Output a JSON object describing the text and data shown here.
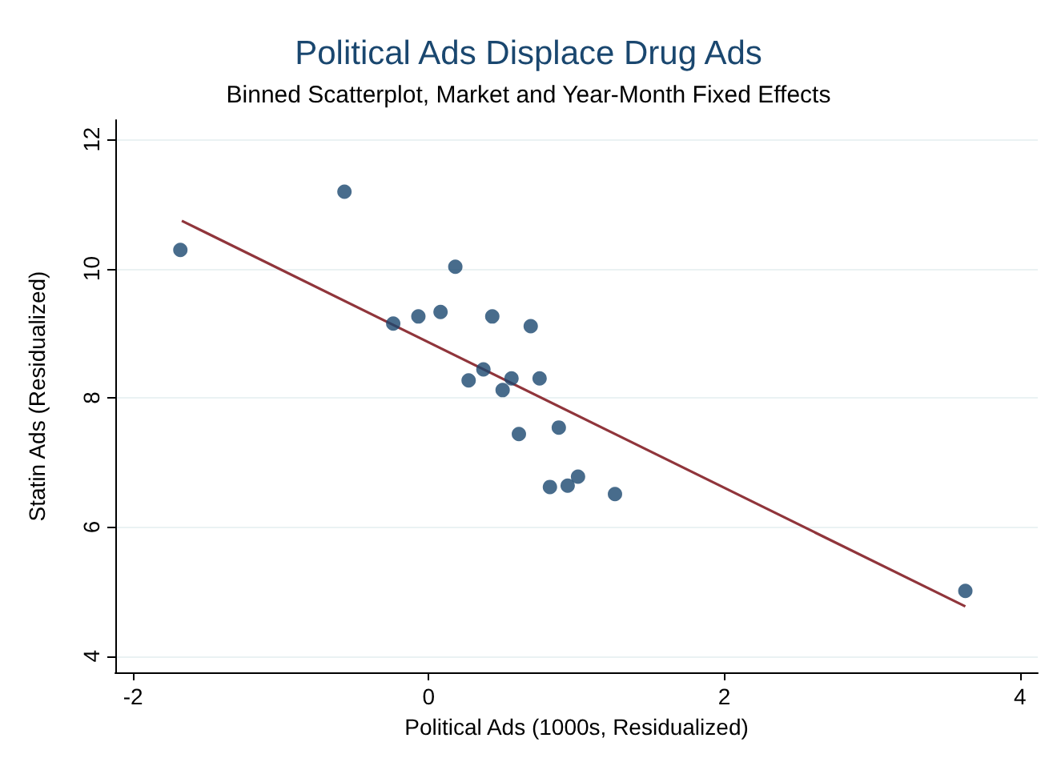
{
  "chart_data": {
    "type": "scatter",
    "title": "Political Ads Displace Drug Ads",
    "subtitle": "Binned Scatterplot, Market and Year-Month Fixed Effects",
    "xlabel": "Political Ads (1000s, Residualized)",
    "ylabel": "Statin Ads (Residualized)",
    "xlim": [
      -2.12,
      4.12
    ],
    "xticks": [
      -2,
      0,
      2,
      4
    ],
    "ylim": [
      3.75,
      12.3
    ],
    "yticks": [
      4,
      6,
      8,
      10,
      12
    ],
    "grid": "y",
    "marker": "circle",
    "series": [
      {
        "color": "#1a476f",
        "x": [
          -1.68,
          -0.57,
          -0.24,
          -0.07,
          0.08,
          0.18,
          0.27,
          0.37,
          0.43,
          0.5,
          0.56,
          0.61,
          0.69,
          0.75,
          0.88,
          0.82,
          0.94,
          1.01,
          1.26,
          3.63
        ],
        "values": [
          10.29,
          11.19,
          9.15,
          9.26,
          9.33,
          10.03,
          8.27,
          8.44,
          9.26,
          8.12,
          8.3,
          7.44,
          9.11,
          8.3,
          7.54,
          6.62,
          6.64,
          6.78,
          6.51,
          5.01
        ]
      },
      {
        "type": "line",
        "color": "#90353b",
        "marker": "none",
        "x": [
          -1.67,
          3.63
        ],
        "values": [
          10.74,
          4.77
        ]
      }
    ]
  }
}
